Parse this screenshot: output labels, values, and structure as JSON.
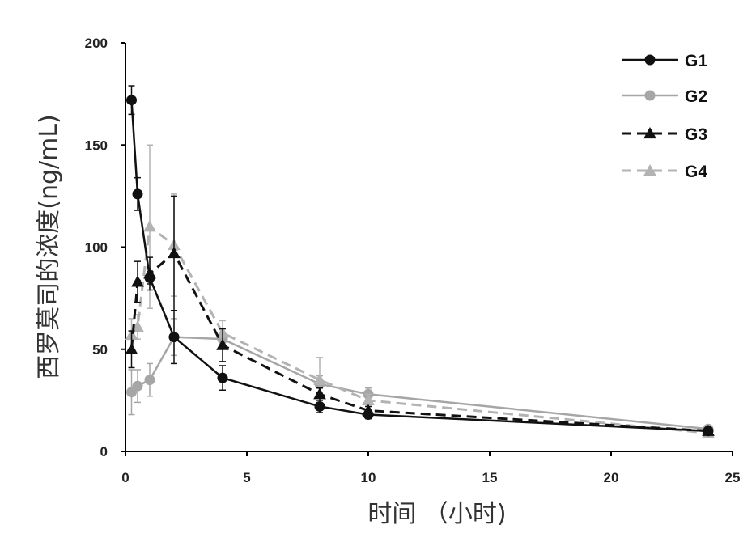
{
  "chart_data": {
    "type": "line",
    "xlabel": "时间 （小时)",
    "ylabel": "西罗莫司的浓度(ng/mL)",
    "xlim": [
      0,
      25
    ],
    "ylim": [
      0,
      200
    ],
    "xticks": [
      0,
      5,
      10,
      15,
      20,
      25
    ],
    "yticks": [
      0,
      50,
      100,
      150,
      200
    ],
    "grid": false,
    "legend_position": "top-right",
    "series": [
      {
        "name": "G1",
        "color": "#111111",
        "dash": "solid",
        "marker": "circle",
        "x": [
          0.25,
          0.5,
          1,
          2,
          4,
          8,
          10,
          24
        ],
        "y": [
          172,
          126,
          85,
          56,
          36,
          22,
          18,
          10
        ],
        "err": [
          7,
          8,
          3,
          13,
          6,
          3,
          2,
          1
        ]
      },
      {
        "name": "G2",
        "color": "#a6a6a6",
        "dash": "solid",
        "marker": "circle",
        "x": [
          0.25,
          0.5,
          1,
          2,
          4,
          8,
          10,
          24
        ],
        "y": [
          29,
          32,
          35,
          56,
          55,
          33,
          28,
          11
        ],
        "err": [
          11,
          8,
          8,
          9,
          5,
          4,
          3,
          1
        ]
      },
      {
        "name": "G3",
        "color": "#111111",
        "dash": "dashed",
        "marker": "triangle",
        "x": [
          0.25,
          0.5,
          1,
          2,
          4,
          8,
          10,
          24
        ],
        "y": [
          50,
          83,
          87,
          97,
          52,
          28,
          20,
          10
        ],
        "err": [
          9,
          10,
          8,
          28,
          8,
          3,
          2,
          1
        ]
      },
      {
        "name": "G4",
        "color": "#b3b3b3",
        "dash": "dashed",
        "marker": "triangle",
        "x": [
          0.25,
          0.5,
          1,
          2,
          4,
          8,
          10,
          24
        ],
        "y": [
          57,
          61,
          110,
          101,
          58,
          35,
          25,
          9
        ],
        "err": [
          8,
          6,
          40,
          25,
          6,
          11,
          3,
          1
        ]
      }
    ]
  }
}
